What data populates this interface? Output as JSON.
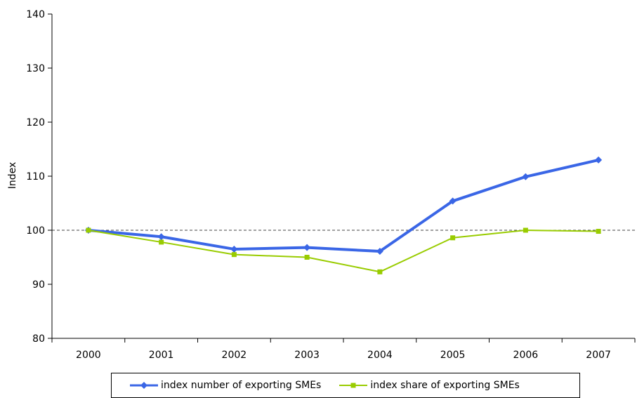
{
  "chart_data": {
    "type": "line",
    "title": "",
    "xlabel": "",
    "ylabel": "Index",
    "categories": [
      "2000",
      "2001",
      "2002",
      "2003",
      "2004",
      "2005",
      "2006",
      "2007"
    ],
    "ylim": [
      80,
      140
    ],
    "yticks": [
      80,
      90,
      100,
      110,
      120,
      130,
      140
    ],
    "reference_line": {
      "value": 100,
      "style": "dashed"
    },
    "grid": false,
    "legend_position": "bottom",
    "series": [
      {
        "name": "index number of exporting SMEs",
        "color": "#3a66e6",
        "marker": "diamond",
        "values": [
          100.0,
          98.8,
          96.5,
          96.8,
          96.1,
          105.4,
          109.9,
          113.0
        ]
      },
      {
        "name": "index share of exporting SMEs",
        "color": "#99cc00",
        "marker": "square",
        "values": [
          100.0,
          97.8,
          95.5,
          95.0,
          92.3,
          98.6,
          100.0,
          99.8
        ]
      }
    ]
  }
}
